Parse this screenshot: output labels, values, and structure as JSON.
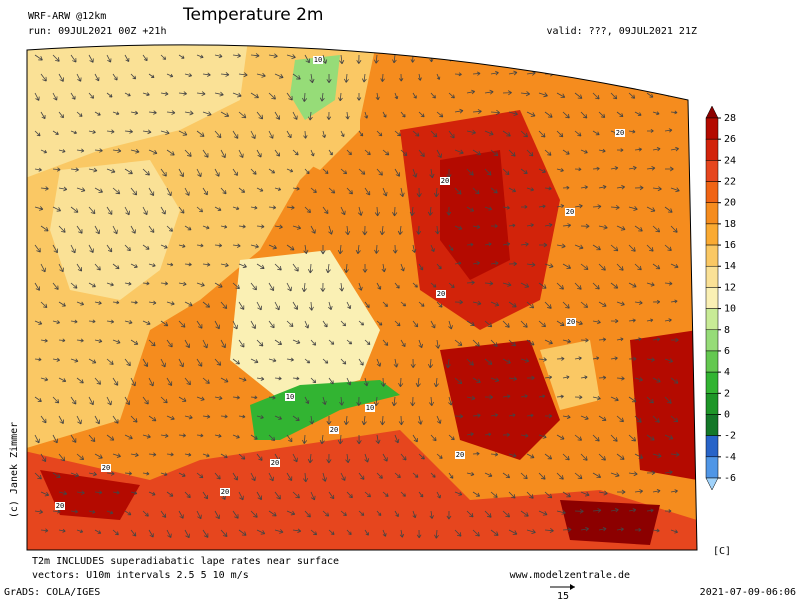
{
  "header": {
    "model": "WRF-ARW @12km",
    "title": "Temperature 2m",
    "run": "run: 09JUL2021 00Z +21h",
    "valid": "valid: ???, 09JUL2021 21Z"
  },
  "colorbar": {
    "ticks": [
      28,
      26,
      24,
      22,
      20,
      18,
      16,
      14,
      12,
      10,
      8,
      6,
      4,
      2,
      0,
      -2,
      -4,
      -6
    ],
    "colors": [
      "#8c0000",
      "#b40a00",
      "#d2230a",
      "#e6461e",
      "#f06414",
      "#f58c1e",
      "#faaa32",
      "#fac864",
      "#fae196",
      "#faf0b4",
      "#c8eb96",
      "#96dc78",
      "#64c850",
      "#32b432",
      "#1e9628",
      "#147828",
      "#2864c8",
      "#5096e6",
      "#a0d2fa"
    ],
    "unit": "[C]"
  },
  "map_labels": [
    "10",
    "20",
    "20",
    "20",
    "20",
    "20",
    "20",
    "10",
    "10",
    "20",
    "20",
    "20",
    "20",
    "20",
    "20"
  ],
  "footer": {
    "note1": "T2m INCLUDES superadiabatic lape rates near surface",
    "note2": "vectors: U10m intervals 2.5 5 10 m/s",
    "site": "www.modelzentrale.de",
    "credit": "GrADS: COLA/IGES",
    "ref_vector": "15",
    "timestamp": "2021-07-09-06:06",
    "author": "(c) Janek Zimmer"
  }
}
